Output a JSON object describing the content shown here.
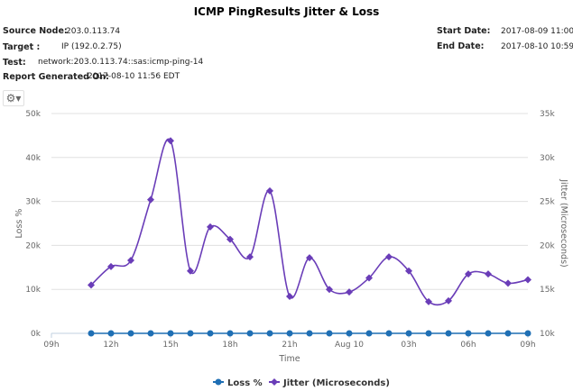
{
  "title": "ICMP PingResults Jitter & Loss",
  "meta": {
    "source_node_label": "Source Node:",
    "source_node": "203.0.113.74",
    "target_label": "Target :",
    "target": "IP (192.0.2.75)",
    "test_label": "Test:",
    "test": "network:203.0.113.74::sas:icmp-ping-14",
    "report_label": "Report Generated On:",
    "report": "2017-08-10 11:56 EDT",
    "start_label": "Start Date:",
    "start": "2017-08-09 11:00",
    "end_label": "End Date:",
    "end": "2017-08-10 10:59"
  },
  "toolbar": {
    "menu_icon": "gear-icon"
  },
  "chart_data": {
    "type": "line",
    "xlabel": "Time",
    "x_ticks": [
      "09h",
      "12h",
      "15h",
      "18h",
      "21h",
      "Aug 10",
      "03h",
      "06h",
      "09h"
    ],
    "x_range": [
      "2017-08-09 09:00",
      "2017-08-10 09:00"
    ],
    "x": [
      "11:00",
      "12:00",
      "13:00",
      "14:00",
      "15:00",
      "16:00",
      "17:00",
      "18:00",
      "19:00",
      "20:00",
      "21:00",
      "22:00",
      "23:00",
      "00:00",
      "01:00",
      "02:00",
      "03:00",
      "04:00",
      "05:00",
      "06:00",
      "07:00",
      "08:00",
      "09:00"
    ],
    "y_left": {
      "label": "Loss %",
      "range": [
        0,
        50000
      ],
      "ticks": [
        "0k",
        "10k",
        "20k",
        "30k",
        "40k",
        "50k"
      ]
    },
    "y_right": {
      "label": "Jitter (Microseconds)",
      "range": [
        10000,
        35000
      ],
      "ticks": [
        "10k",
        "15k",
        "20k",
        "25k",
        "30k",
        "35k"
      ]
    },
    "grid": true,
    "legend": "bottom",
    "series": [
      {
        "name": "Loss %",
        "axis": "left",
        "color": "#1f6fb4",
        "marker": "circle",
        "values": [
          0,
          0,
          0,
          0,
          0,
          0,
          0,
          0,
          0,
          0,
          0,
          0,
          0,
          0,
          0,
          0,
          0,
          0,
          0,
          0,
          0,
          0,
          0
        ]
      },
      {
        "name": "Jitter (Microseconds)",
        "axis": "right",
        "color": "#6a3db8",
        "marker": "diamond",
        "values": [
          15500,
          17600,
          18300,
          25200,
          31900,
          17100,
          22100,
          20700,
          18700,
          26200,
          14200,
          18600,
          15000,
          14700,
          16300,
          18700,
          17100,
          13600,
          13700,
          16750,
          16750,
          15700,
          16100
        ]
      }
    ]
  }
}
